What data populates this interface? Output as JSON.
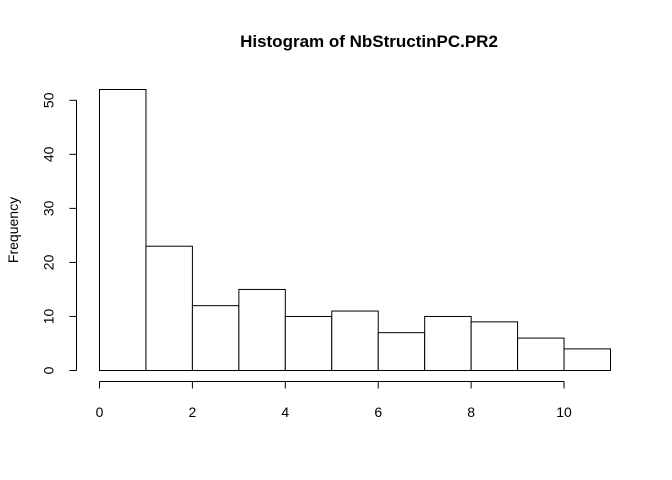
{
  "chart_data": {
    "type": "bar",
    "title": "Histogram of NbStructinPC.PR2",
    "xlabel": "",
    "ylabel": "Frequency",
    "bins": [
      {
        "x0": 0,
        "x1": 1,
        "count": 52
      },
      {
        "x0": 1,
        "x1": 2,
        "count": 23
      },
      {
        "x0": 2,
        "x1": 3,
        "count": 12
      },
      {
        "x0": 3,
        "x1": 4,
        "count": 15
      },
      {
        "x0": 4,
        "x1": 5,
        "count": 10
      },
      {
        "x0": 5,
        "x1": 6,
        "count": 11
      },
      {
        "x0": 6,
        "x1": 7,
        "count": 7
      },
      {
        "x0": 7,
        "x1": 8,
        "count": 10
      },
      {
        "x0": 8,
        "x1": 9,
        "count": 9
      },
      {
        "x0": 9,
        "x1": 10,
        "count": 6
      },
      {
        "x0": 10,
        "x1": 11,
        "count": 4
      }
    ],
    "xlim": [
      0,
      11
    ],
    "ylim": [
      0,
      52
    ],
    "x_ticks": [
      "0",
      "2",
      "4",
      "6",
      "8",
      "10"
    ],
    "y_ticks": [
      "0",
      "10",
      "20",
      "30",
      "40",
      "50"
    ],
    "grid": false,
    "bar_fill": "#ffffff",
    "bar_stroke": "#000000"
  }
}
